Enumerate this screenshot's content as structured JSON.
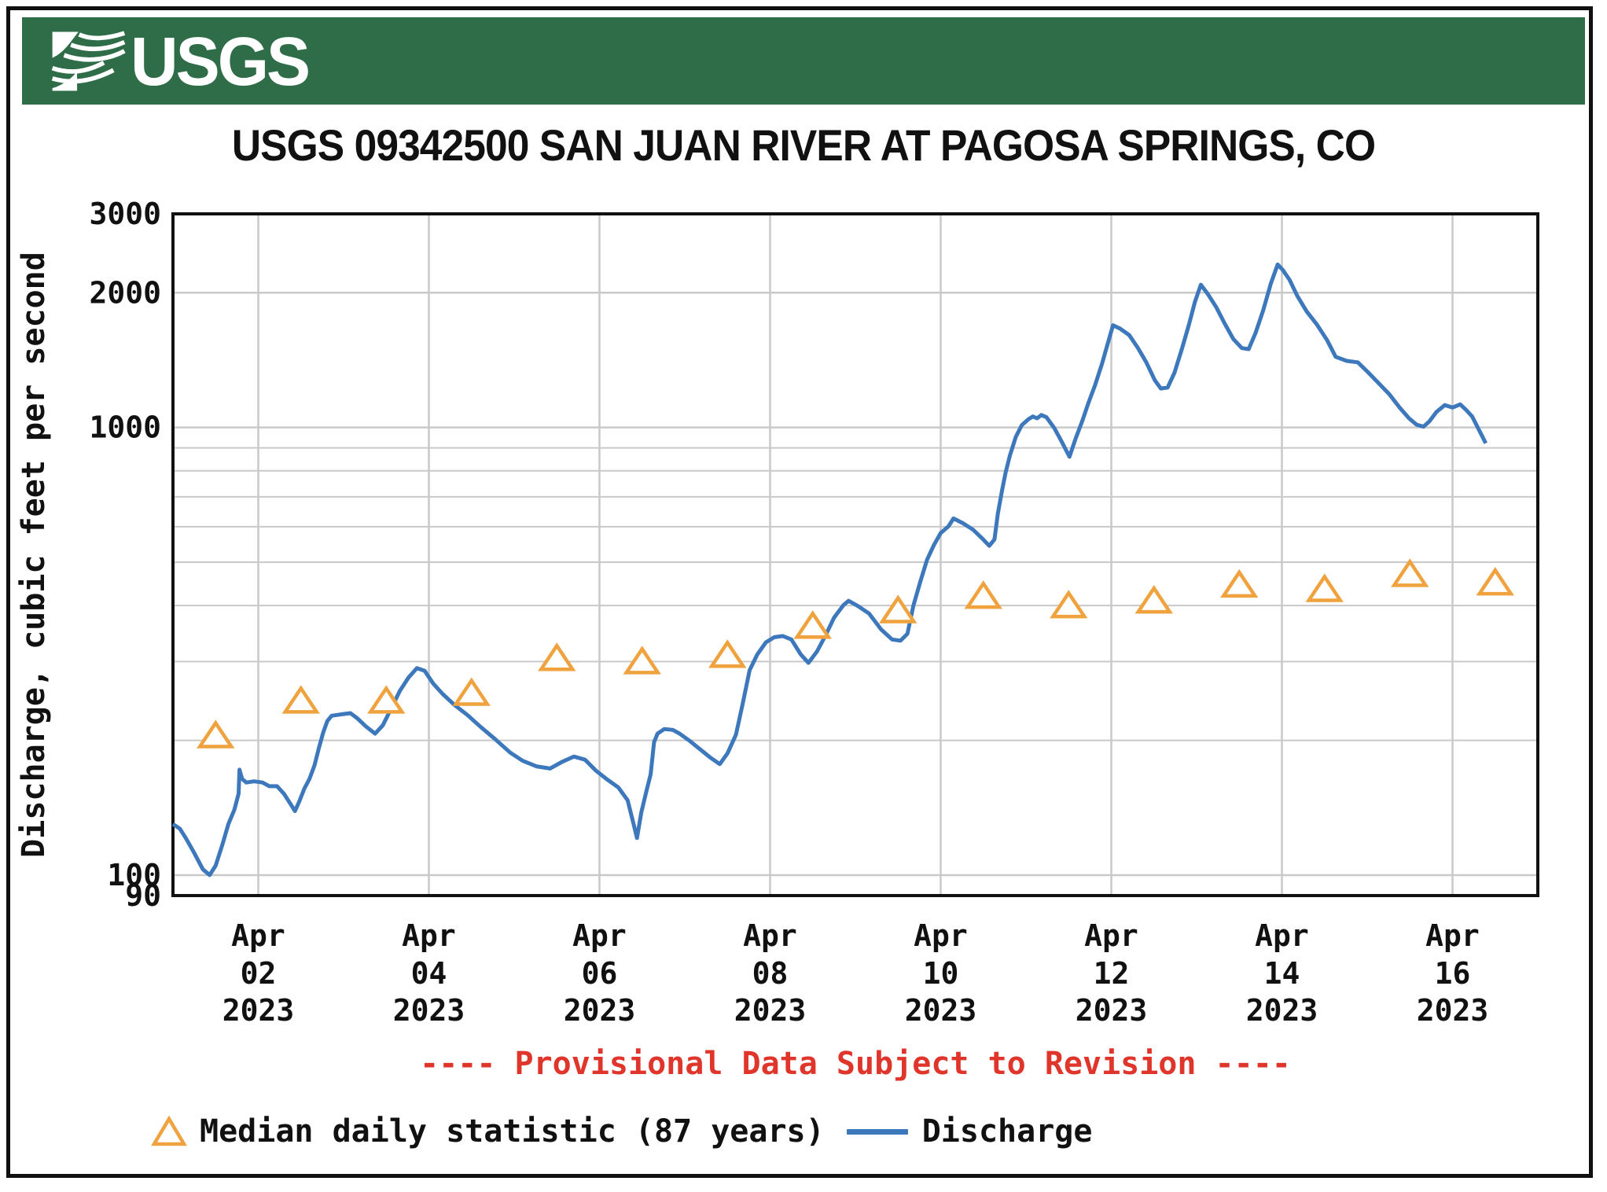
{
  "banner": {
    "logo_text": "USGS",
    "background_color": "#2e6d47"
  },
  "title": "USGS 09342500 SAN JUAN RIVER AT PAGOSA SPRINGS, CO",
  "provisional_note": "---- Provisional Data Subject to Revision ----",
  "provisional_color": "#e0352b",
  "legend": {
    "median_label": "Median daily statistic (87 years)",
    "discharge_label": "Discharge"
  },
  "colors": {
    "discharge_line": "#3c78bb",
    "median_marker": "#efa23d",
    "gridline": "#c9c9c9",
    "plot_border": "#111111",
    "text": "#111111"
  },
  "chart_data": {
    "type": "line",
    "title": "USGS 09342500 SAN JUAN RIVER AT PAGOSA SPRINGS, CO",
    "xlabel": "",
    "ylabel": "Discharge, cubic feet per second",
    "y_scale": "log",
    "ylim": [
      90,
      3000
    ],
    "y_major_ticks": [
      3000,
      2000,
      1000,
      100,
      90
    ],
    "y_major_gridlines": [
      2000,
      1000,
      100
    ],
    "y_minor_gridlines": [
      900,
      800,
      700,
      600,
      500,
      400,
      300,
      200
    ],
    "x_start_date": "2023-04-01",
    "x_days_total": 16,
    "grid": true,
    "legend_position": "bottom",
    "x_tick_labels": [
      {
        "line1": "Apr",
        "line2": "02",
        "line3": "2023",
        "day_offset": 1
      },
      {
        "line1": "Apr",
        "line2": "04",
        "line3": "2023",
        "day_offset": 3
      },
      {
        "line1": "Apr",
        "line2": "06",
        "line3": "2023",
        "day_offset": 5
      },
      {
        "line1": "Apr",
        "line2": "08",
        "line3": "2023",
        "day_offset": 7
      },
      {
        "line1": "Apr",
        "line2": "10",
        "line3": "2023",
        "day_offset": 9
      },
      {
        "line1": "Apr",
        "line2": "12",
        "line3": "2023",
        "day_offset": 11
      },
      {
        "line1": "Apr",
        "line2": "14",
        "line3": "2023",
        "day_offset": 13
      },
      {
        "line1": "Apr",
        "line2": "16",
        "line3": "2023",
        "day_offset": 15
      }
    ],
    "series": [
      {
        "name": "Discharge",
        "units": "cfs",
        "style": "line",
        "color": "#3c78bb",
        "points": [
          [
            0.0,
            130
          ],
          [
            0.08,
            127
          ],
          [
            0.15,
            121
          ],
          [
            0.25,
            112
          ],
          [
            0.35,
            103
          ],
          [
            0.43,
            100
          ],
          [
            0.5,
            105
          ],
          [
            0.58,
            117
          ],
          [
            0.65,
            130
          ],
          [
            0.72,
            140
          ],
          [
            0.77,
            152
          ],
          [
            0.78,
            172
          ],
          [
            0.81,
            164
          ],
          [
            0.86,
            161
          ],
          [
            0.95,
            162
          ],
          [
            1.05,
            161
          ],
          [
            1.13,
            158
          ],
          [
            1.22,
            158
          ],
          [
            1.3,
            152
          ],
          [
            1.38,
            144
          ],
          [
            1.43,
            139
          ],
          [
            1.48,
            146
          ],
          [
            1.54,
            156
          ],
          [
            1.6,
            164
          ],
          [
            1.66,
            176
          ],
          [
            1.71,
            192
          ],
          [
            1.76,
            208
          ],
          [
            1.81,
            221
          ],
          [
            1.86,
            227
          ],
          [
            1.93,
            228
          ],
          [
            2.0,
            229
          ],
          [
            2.08,
            230
          ],
          [
            2.16,
            224
          ],
          [
            2.26,
            215
          ],
          [
            2.37,
            207
          ],
          [
            2.46,
            216
          ],
          [
            2.56,
            236
          ],
          [
            2.66,
            258
          ],
          [
            2.76,
            276
          ],
          [
            2.86,
            290
          ],
          [
            2.95,
            286
          ],
          [
            3.05,
            268
          ],
          [
            3.16,
            254
          ],
          [
            3.3,
            240
          ],
          [
            3.45,
            228
          ],
          [
            3.61,
            214
          ],
          [
            3.78,
            201
          ],
          [
            3.95,
            188
          ],
          [
            4.1,
            180
          ],
          [
            4.26,
            175
          ],
          [
            4.42,
            173
          ],
          [
            4.56,
            179
          ],
          [
            4.7,
            184
          ],
          [
            4.83,
            181
          ],
          [
            4.96,
            171
          ],
          [
            5.1,
            163
          ],
          [
            5.22,
            157
          ],
          [
            5.33,
            147
          ],
          [
            5.4,
            130
          ],
          [
            5.44,
            121
          ],
          [
            5.49,
            138
          ],
          [
            5.55,
            154
          ],
          [
            5.6,
            168
          ],
          [
            5.64,
            198
          ],
          [
            5.68,
            207
          ],
          [
            5.76,
            212
          ],
          [
            5.86,
            211
          ],
          [
            5.94,
            207
          ],
          [
            6.05,
            200
          ],
          [
            6.18,
            191
          ],
          [
            6.3,
            183
          ],
          [
            6.41,
            177
          ],
          [
            6.5,
            187
          ],
          [
            6.6,
            206
          ],
          [
            6.68,
            242
          ],
          [
            6.76,
            287
          ],
          [
            6.85,
            311
          ],
          [
            6.95,
            331
          ],
          [
            7.05,
            340
          ],
          [
            7.15,
            342
          ],
          [
            7.25,
            336
          ],
          [
            7.36,
            311
          ],
          [
            7.45,
            298
          ],
          [
            7.55,
            316
          ],
          [
            7.65,
            343
          ],
          [
            7.75,
            376
          ],
          [
            7.86,
            401
          ],
          [
            7.92,
            410
          ],
          [
            8.03,
            399
          ],
          [
            8.16,
            384
          ],
          [
            8.3,
            354
          ],
          [
            8.43,
            336
          ],
          [
            8.53,
            334
          ],
          [
            8.61,
            346
          ],
          [
            8.68,
            400
          ],
          [
            8.76,
            452
          ],
          [
            8.84,
            506
          ],
          [
            8.92,
            546
          ],
          [
            9.0,
            581
          ],
          [
            9.09,
            601
          ],
          [
            9.15,
            626
          ],
          [
            9.26,
            611
          ],
          [
            9.38,
            591
          ],
          [
            9.49,
            564
          ],
          [
            9.57,
            544
          ],
          [
            9.63,
            562
          ],
          [
            9.67,
            642
          ],
          [
            9.72,
            724
          ],
          [
            9.76,
            792
          ],
          [
            9.81,
            864
          ],
          [
            9.88,
            952
          ],
          [
            9.95,
            1012
          ],
          [
            10.03,
            1044
          ],
          [
            10.08,
            1058
          ],
          [
            10.13,
            1048
          ],
          [
            10.18,
            1066
          ],
          [
            10.24,
            1054
          ],
          [
            10.33,
            998
          ],
          [
            10.42,
            928
          ],
          [
            10.51,
            860
          ],
          [
            10.58,
            942
          ],
          [
            10.66,
            1034
          ],
          [
            10.73,
            1132
          ],
          [
            10.81,
            1244
          ],
          [
            10.89,
            1386
          ],
          [
            10.96,
            1544
          ],
          [
            11.02,
            1692
          ],
          [
            11.1,
            1664
          ],
          [
            11.21,
            1608
          ],
          [
            11.31,
            1508
          ],
          [
            11.41,
            1398
          ],
          [
            11.51,
            1276
          ],
          [
            11.58,
            1222
          ],
          [
            11.66,
            1228
          ],
          [
            11.74,
            1324
          ],
          [
            11.83,
            1504
          ],
          [
            11.91,
            1696
          ],
          [
            11.98,
            1906
          ],
          [
            12.05,
            2084
          ],
          [
            12.13,
            1988
          ],
          [
            12.23,
            1856
          ],
          [
            12.33,
            1706
          ],
          [
            12.43,
            1576
          ],
          [
            12.53,
            1504
          ],
          [
            12.61,
            1496
          ],
          [
            12.69,
            1624
          ],
          [
            12.78,
            1824
          ],
          [
            12.87,
            2096
          ],
          [
            12.95,
            2312
          ],
          [
            13.01,
            2248
          ],
          [
            13.09,
            2136
          ],
          [
            13.18,
            1968
          ],
          [
            13.29,
            1816
          ],
          [
            13.41,
            1698
          ],
          [
            13.53,
            1566
          ],
          [
            13.63,
            1438
          ],
          [
            13.76,
            1408
          ],
          [
            13.89,
            1398
          ],
          [
            14.01,
            1328
          ],
          [
            14.13,
            1258
          ],
          [
            14.26,
            1186
          ],
          [
            14.38,
            1108
          ],
          [
            14.49,
            1048
          ],
          [
            14.58,
            1014
          ],
          [
            14.66,
            1004
          ],
          [
            14.73,
            1032
          ],
          [
            14.81,
            1082
          ],
          [
            14.91,
            1122
          ],
          [
            15.0,
            1108
          ],
          [
            15.09,
            1126
          ],
          [
            15.16,
            1094
          ],
          [
            15.23,
            1058
          ],
          [
            15.31,
            988
          ],
          [
            15.39,
            922
          ]
        ]
      },
      {
        "name": "Median daily statistic (87 years)",
        "units": "cfs",
        "style": "triangle-markers",
        "color": "#efa23d",
        "dates": [
          "Apr 01",
          "Apr 02",
          "Apr 03",
          "Apr 04",
          "Apr 05",
          "Apr 06",
          "Apr 07",
          "Apr 08",
          "Apr 09",
          "Apr 10",
          "Apr 11",
          "Apr 12",
          "Apr 13",
          "Apr 14",
          "Apr 15",
          "Apr 16"
        ],
        "points": [
          [
            0.5,
            205
          ],
          [
            1.5,
            245
          ],
          [
            2.5,
            245
          ],
          [
            3.5,
            255
          ],
          [
            4.5,
            305
          ],
          [
            5.5,
            300
          ],
          [
            6.5,
            310
          ],
          [
            7.5,
            360
          ],
          [
            8.5,
            390
          ],
          [
            9.5,
            420
          ],
          [
            10.5,
            400
          ],
          [
            11.5,
            410
          ],
          [
            12.5,
            445
          ],
          [
            13.5,
            435
          ],
          [
            14.5,
            470
          ],
          [
            15.5,
            450
          ]
        ]
      }
    ]
  }
}
